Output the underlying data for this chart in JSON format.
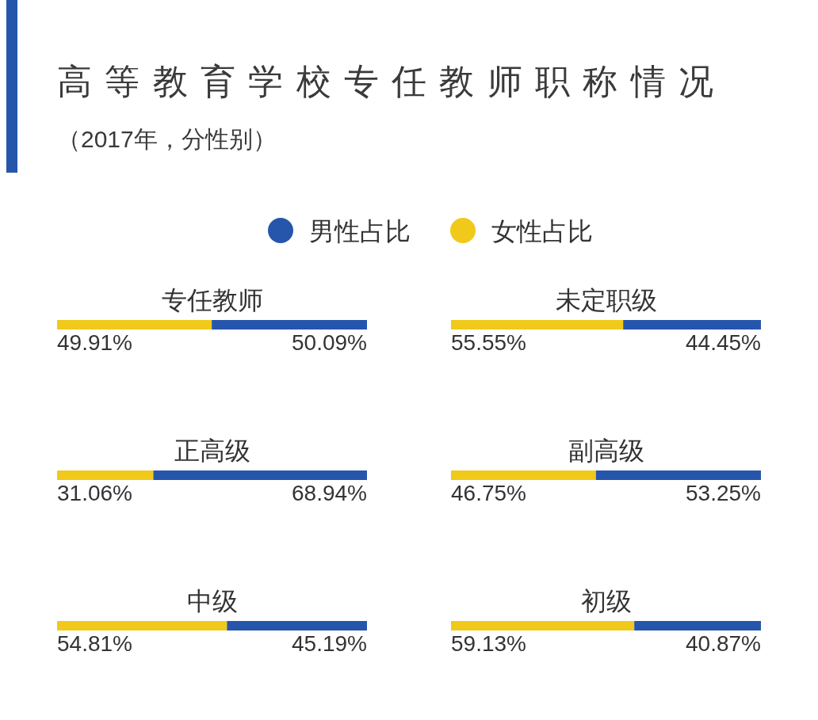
{
  "chart_data": [
    {
      "type": "bar",
      "title": "高等教育学校专任教师职称情况",
      "subtitle": "（2017年，分性别）",
      "orientation": "horizontal",
      "stacked": true,
      "legend": "top",
      "categories": [
        "专任教师"
      ],
      "series": [
        {
          "name": "女性占比",
          "color": "#f0c91a",
          "values": [
            49.91
          ],
          "value_labels": [
            "49.91%"
          ]
        },
        {
          "name": "男性占比",
          "color": "#2656ac",
          "values": [
            50.09
          ],
          "value_labels": [
            "50.09%"
          ]
        }
      ]
    },
    {
      "type": "bar",
      "orientation": "horizontal",
      "stacked": true,
      "categories": [
        "未定职级"
      ],
      "series": [
        {
          "color": "#f0c91a",
          "values": [
            55.55
          ],
          "value_labels": [
            "55.55%"
          ]
        },
        {
          "color": "#2656ac",
          "values": [
            44.45
          ],
          "value_labels": [
            "44.45%"
          ]
        }
      ]
    },
    {
      "type": "bar",
      "orientation": "horizontal",
      "stacked": true,
      "categories": [
        "正高级"
      ],
      "series": [
        {
          "color": "#f0c91a",
          "values": [
            31.06
          ],
          "value_labels": [
            "31.06%"
          ]
        },
        {
          "color": "#2656ac",
          "values": [
            68.94
          ],
          "value_labels": [
            "68.94%"
          ]
        }
      ]
    },
    {
      "type": "bar",
      "orientation": "horizontal",
      "stacked": true,
      "categories": [
        "副高级"
      ],
      "series": [
        {
          "color": "#f0c91a",
          "values": [
            46.75
          ],
          "value_labels": [
            "46.75%"
          ]
        },
        {
          "color": "#2656ac",
          "values": [
            53.25
          ],
          "value_labels": [
            "53.25%"
          ]
        }
      ]
    },
    {
      "type": "bar",
      "orientation": "horizontal",
      "stacked": true,
      "categories": [
        "中级"
      ],
      "series": [
        {
          "color": "#f0c91a",
          "values": [
            54.81
          ],
          "value_labels": [
            "54.81%"
          ]
        },
        {
          "color": "#2656ac",
          "values": [
            45.19
          ],
          "value_labels": [
            "45.19%"
          ]
        }
      ]
    },
    {
      "type": "bar",
      "orientation": "horizontal",
      "stacked": true,
      "categories": [
        "初级"
      ],
      "series": [
        {
          "color": "#f0c91a",
          "values": [
            59.13
          ],
          "value_labels": [
            "59.13%"
          ]
        },
        {
          "color": "#2656ac",
          "values": [
            40.87
          ],
          "value_labels": [
            "40.87%"
          ]
        }
      ]
    }
  ]
}
